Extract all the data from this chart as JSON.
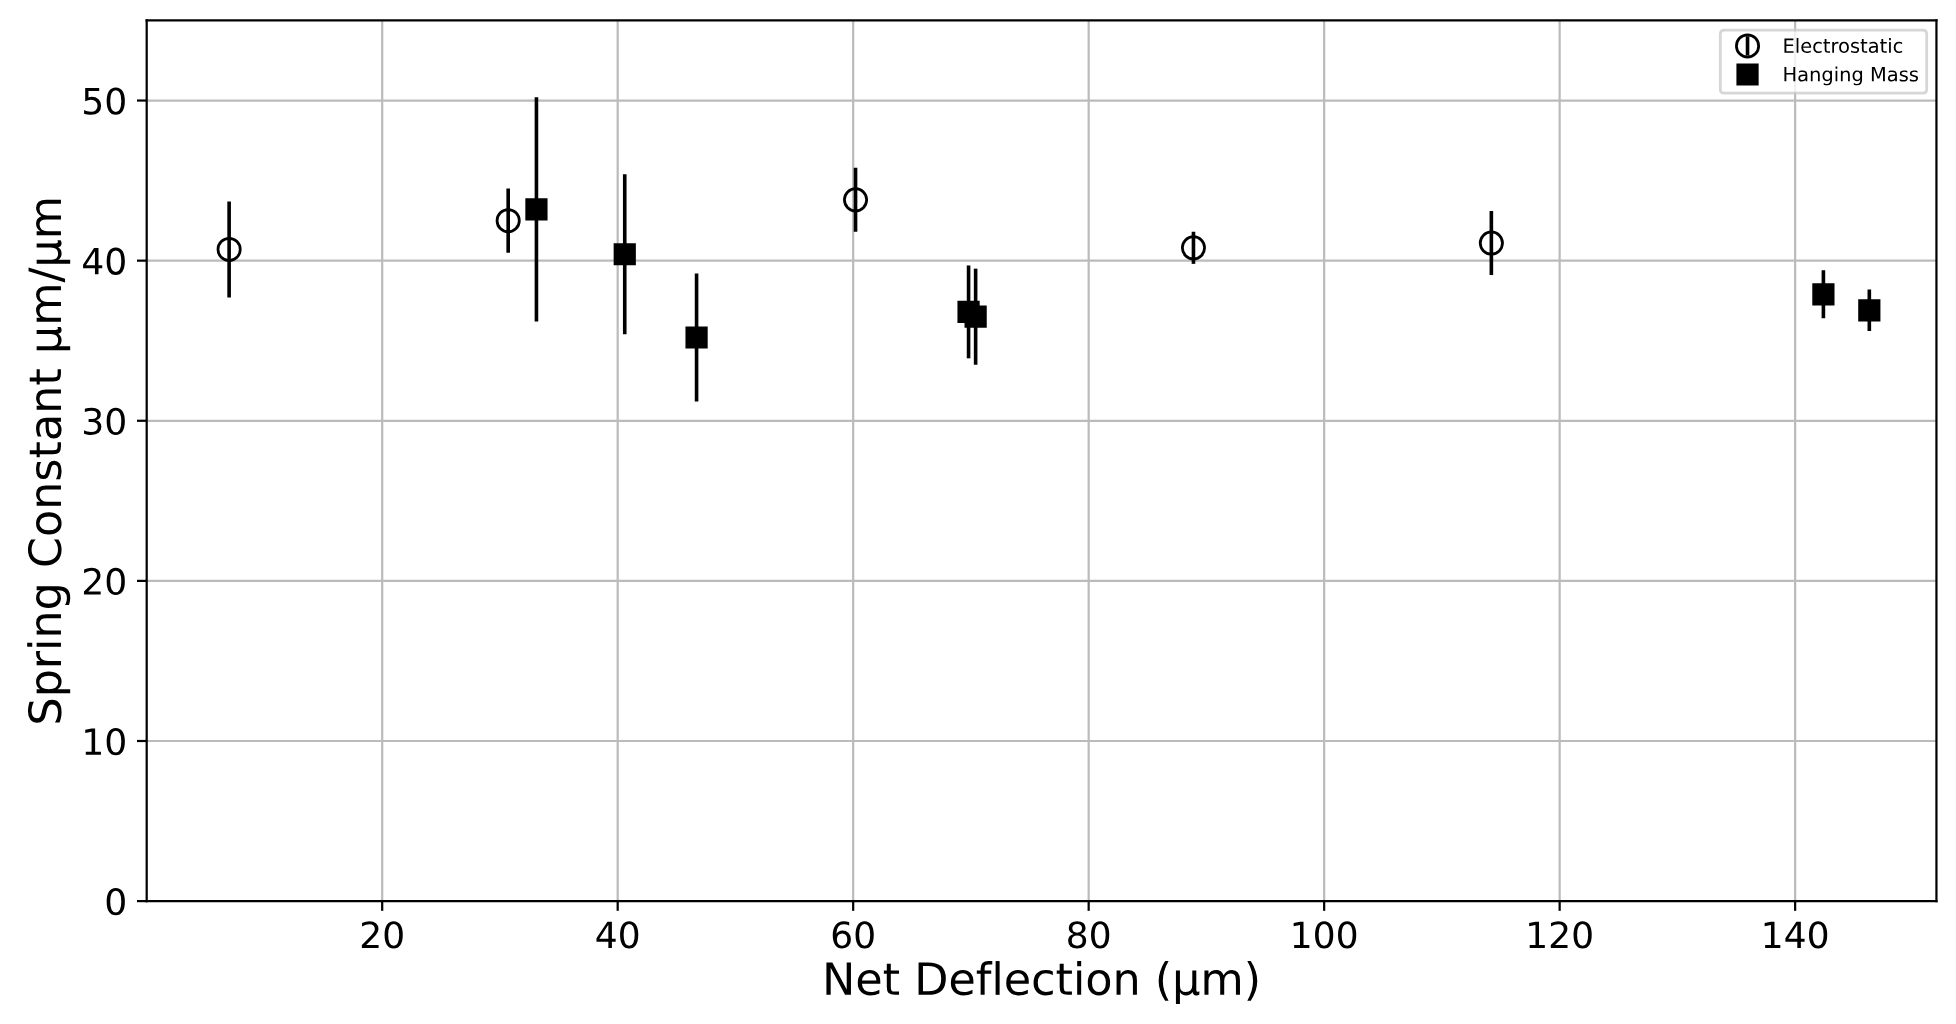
{
  "chart_data": {
    "type": "scatter",
    "xlabel": "Net Deflection (µm)",
    "ylabel": "Spring Constant µm/µm",
    "xlim": [
      0,
      152
    ],
    "xticks": [
      20,
      40,
      60,
      80,
      100,
      120,
      140
    ],
    "ylim": [
      0,
      55
    ],
    "yticks": [
      0,
      10,
      20,
      30,
      40,
      50
    ],
    "grid": true,
    "legend": "top right",
    "series": [
      {
        "name": "Electrostatic",
        "color": "#000000",
        "marker": "circle",
        "x": [
          7,
          30.7,
          60.2,
          88.9,
          114.2
        ],
        "values": [
          40.7,
          42.5,
          43.8,
          40.8,
          41.1
        ],
        "errors": [
          3,
          2,
          2,
          1,
          2
        ]
      },
      {
        "name": "Hanging Mass",
        "color": "#000000",
        "marker": "square",
        "x": [
          33.1,
          40.6,
          46.7,
          69.8,
          70.4,
          142.4,
          146.3
        ],
        "values": [
          43.2,
          40.4,
          35.2,
          36.8,
          36.5,
          37.9,
          36.9
        ],
        "errors": [
          7,
          5,
          4,
          2.9,
          3,
          1.5,
          1.3
        ]
      }
    ]
  }
}
